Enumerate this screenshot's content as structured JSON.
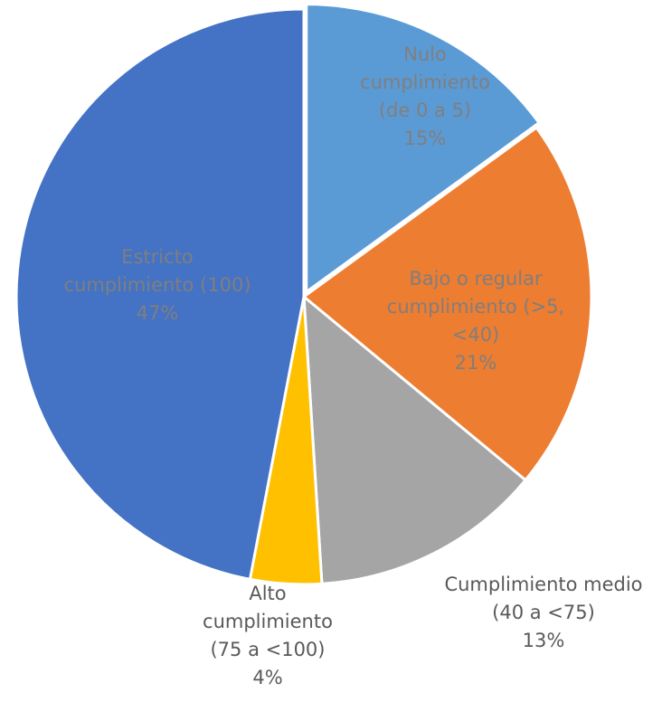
{
  "chart_data": {
    "type": "pie",
    "title": "",
    "legend": "none",
    "slices": [
      {
        "name": "Nulo cumplimiento (de 0 a 5)",
        "value": 15,
        "label_lines": [
          "Nulo",
          "cumplimiento",
          "(de 0 a 5)",
          "15%"
        ],
        "color": "#5B9BD5",
        "label_color": "#7F7F7F"
      },
      {
        "name": "Bajo o regular cumplimiento (>5, <40)",
        "value": 21,
        "label_lines": [
          "Bajo o regular",
          "cumplimiento (>5,",
          "<40)",
          "21%"
        ],
        "color": "#ED7D31",
        "label_color": "#7F7F7F"
      },
      {
        "name": "Cumplimiento medio (40 a <75)",
        "value": 13,
        "label_lines": [
          "Cumplimiento medio",
          "(40 a <75)",
          "13%"
        ],
        "color": "#A5A5A5",
        "label_color": "#595959"
      },
      {
        "name": "Alto cumplimiento (75 a <100)",
        "value": 4,
        "label_lines": [
          "Alto",
          "cumplimiento",
          "(75 a <100)",
          "4%"
        ],
        "color": "#FFC000",
        "label_color": "#595959"
      },
      {
        "name": "Estricto cumplimiento (100)",
        "value": 47,
        "label_lines": [
          "Estricto",
          "cumplimiento (100)",
          "47%"
        ],
        "color": "#4472C4",
        "label_color": "#7F7F7F"
      }
    ]
  }
}
